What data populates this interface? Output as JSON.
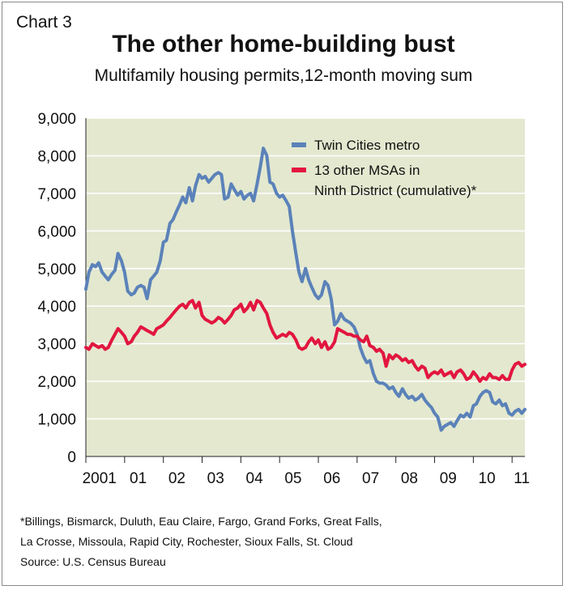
{
  "header": {
    "chart_label": "Chart 3",
    "title": "The other home-building bust",
    "subtitle": "Multifamily housing permits,12-month moving sum"
  },
  "footer": {
    "footnote_line1": "*Billings, Bismarck, Duluth, Eau Claire, Fargo, Grand Forks, Great Falls,",
    "footnote_line2": "La Crosse, Missoula, Rapid City, Rochester, Sioux Falls, St. Cloud",
    "source": "Source: U.S. Census Bureau"
  },
  "colors": {
    "plot_background": "#e3e8cf",
    "twin_cities": "#5b82b9",
    "other_msas": "#e2163f",
    "axis": "#222222"
  },
  "chart_data": {
    "type": "line",
    "title": "The other home-building bust",
    "subtitle": "Multifamily housing permits,12-month moving sum",
    "xlabel": "",
    "ylabel": "",
    "xlim": [
      2001.0,
      2011.85
    ],
    "ylim": [
      0,
      9000
    ],
    "yticks": [
      0,
      1000,
      2000,
      3000,
      4000,
      5000,
      6000,
      7000,
      8000,
      9000
    ],
    "ytick_labels": [
      "0",
      "1,000",
      "2,000",
      "3,000",
      "4,000",
      "5,000",
      "6,000",
      "7,000",
      "8,000",
      "9,000"
    ],
    "xtick_labels": [
      {
        "label": "2001",
        "x": 2001.35
      },
      {
        "label": "01",
        "x": 2002.35
      },
      {
        "label": "02",
        "x": 2003.35
      },
      {
        "label": "03",
        "x": 2004.35
      },
      {
        "label": "04",
        "x": 2005.35
      },
      {
        "label": "05",
        "x": 2006.35
      },
      {
        "label": "06",
        "x": 2007.35
      },
      {
        "label": "07",
        "x": 2008.35
      },
      {
        "label": "08",
        "x": 2009.35
      },
      {
        "label": "09",
        "x": 2010.35
      },
      {
        "label": "10",
        "x": 2011.35
      },
      {
        "label": "11",
        "x": 2012.25
      }
    ],
    "grid": "horizontal",
    "legend_position": "top-right",
    "series": [
      {
        "name": "Twin Cities metro",
        "color": "#5b82b9",
        "points": [
          [
            2001.0,
            4450
          ],
          [
            2001.08,
            4900
          ],
          [
            2001.17,
            5100
          ],
          [
            2001.25,
            5050
          ],
          [
            2001.33,
            5150
          ],
          [
            2001.42,
            4900
          ],
          [
            2001.5,
            4800
          ],
          [
            2001.58,
            4700
          ],
          [
            2001.67,
            4850
          ],
          [
            2001.75,
            4950
          ],
          [
            2001.83,
            5400
          ],
          [
            2001.92,
            5200
          ],
          [
            2002.0,
            4900
          ],
          [
            2002.08,
            4400
          ],
          [
            2002.17,
            4300
          ],
          [
            2002.25,
            4350
          ],
          [
            2002.33,
            4500
          ],
          [
            2002.42,
            4550
          ],
          [
            2002.5,
            4500
          ],
          [
            2002.58,
            4200
          ],
          [
            2002.67,
            4700
          ],
          [
            2002.75,
            4800
          ],
          [
            2002.83,
            4900
          ],
          [
            2002.92,
            5200
          ],
          [
            2003.0,
            5700
          ],
          [
            2003.08,
            5750
          ],
          [
            2003.17,
            6200
          ],
          [
            2003.25,
            6300
          ],
          [
            2003.33,
            6500
          ],
          [
            2003.42,
            6700
          ],
          [
            2003.5,
            6900
          ],
          [
            2003.58,
            6750
          ],
          [
            2003.67,
            7150
          ],
          [
            2003.75,
            6800
          ],
          [
            2003.83,
            7200
          ],
          [
            2003.92,
            7500
          ],
          [
            2004.0,
            7400
          ],
          [
            2004.08,
            7450
          ],
          [
            2004.17,
            7300
          ],
          [
            2004.25,
            7400
          ],
          [
            2004.33,
            7500
          ],
          [
            2004.42,
            7550
          ],
          [
            2004.5,
            7500
          ],
          [
            2004.58,
            6850
          ],
          [
            2004.67,
            6900
          ],
          [
            2004.75,
            7250
          ],
          [
            2004.83,
            7100
          ],
          [
            2004.92,
            6950
          ],
          [
            2005.0,
            7050
          ],
          [
            2005.08,
            6850
          ],
          [
            2005.17,
            6950
          ],
          [
            2005.25,
            7000
          ],
          [
            2005.33,
            6800
          ],
          [
            2005.42,
            7250
          ],
          [
            2005.5,
            7700
          ],
          [
            2005.58,
            8200
          ],
          [
            2005.67,
            8000
          ],
          [
            2005.75,
            7300
          ],
          [
            2005.83,
            7250
          ],
          [
            2005.92,
            7000
          ],
          [
            2006.0,
            6900
          ],
          [
            2006.08,
            6950
          ],
          [
            2006.17,
            6800
          ],
          [
            2006.25,
            6650
          ],
          [
            2006.33,
            6000
          ],
          [
            2006.42,
            5400
          ],
          [
            2006.5,
            4900
          ],
          [
            2006.58,
            4650
          ],
          [
            2006.67,
            5000
          ],
          [
            2006.75,
            4700
          ],
          [
            2006.83,
            4500
          ],
          [
            2006.92,
            4300
          ],
          [
            2007.0,
            4200
          ],
          [
            2007.08,
            4300
          ],
          [
            2007.17,
            4650
          ],
          [
            2007.25,
            4550
          ],
          [
            2007.33,
            4200
          ],
          [
            2007.42,
            3500
          ],
          [
            2007.5,
            3600
          ],
          [
            2007.58,
            3800
          ],
          [
            2007.67,
            3650
          ],
          [
            2007.75,
            3600
          ],
          [
            2007.83,
            3550
          ],
          [
            2007.92,
            3450
          ],
          [
            2008.0,
            3250
          ],
          [
            2008.08,
            2900
          ],
          [
            2008.17,
            2650
          ],
          [
            2008.25,
            2500
          ],
          [
            2008.33,
            2550
          ],
          [
            2008.42,
            2200
          ],
          [
            2008.5,
            2000
          ],
          [
            2008.58,
            1950
          ],
          [
            2008.67,
            1950
          ],
          [
            2008.75,
            1900
          ],
          [
            2008.83,
            1800
          ],
          [
            2008.92,
            1850
          ],
          [
            2009.0,
            1700
          ],
          [
            2009.08,
            1600
          ],
          [
            2009.17,
            1800
          ],
          [
            2009.25,
            1650
          ],
          [
            2009.33,
            1550
          ],
          [
            2009.42,
            1600
          ],
          [
            2009.5,
            1500
          ],
          [
            2009.58,
            1550
          ],
          [
            2009.67,
            1650
          ],
          [
            2009.75,
            1500
          ],
          [
            2009.83,
            1400
          ],
          [
            2009.92,
            1300
          ],
          [
            2010.0,
            1150
          ],
          [
            2010.08,
            1050
          ],
          [
            2010.17,
            700
          ],
          [
            2010.25,
            800
          ],
          [
            2010.33,
            850
          ],
          [
            2010.42,
            900
          ],
          [
            2010.5,
            800
          ],
          [
            2010.58,
            950
          ],
          [
            2010.67,
            1100
          ],
          [
            2010.75,
            1050
          ],
          [
            2010.83,
            1150
          ],
          [
            2010.92,
            1050
          ],
          [
            2011.0,
            1350
          ],
          [
            2011.08,
            1400
          ],
          [
            2011.17,
            1600
          ],
          [
            2011.25,
            1700
          ],
          [
            2011.33,
            1750
          ],
          [
            2011.42,
            1700
          ],
          [
            2011.5,
            1450
          ],
          [
            2011.58,
            1400
          ],
          [
            2011.67,
            1500
          ],
          [
            2011.75,
            1350
          ],
          [
            2011.83,
            1400
          ],
          [
            2011.92,
            1150
          ],
          [
            2012.0,
            1100
          ],
          [
            2012.08,
            1200
          ],
          [
            2012.17,
            1250
          ],
          [
            2012.25,
            1150
          ],
          [
            2012.33,
            1250
          ]
        ]
      },
      {
        "name": "13 other MSAs in Ninth District (cumulative)*",
        "color": "#e2163f",
        "points": [
          [
            2001.0,
            2900
          ],
          [
            2001.08,
            2850
          ],
          [
            2001.17,
            3000
          ],
          [
            2001.25,
            2950
          ],
          [
            2001.33,
            2900
          ],
          [
            2001.42,
            2950
          ],
          [
            2001.5,
            2850
          ],
          [
            2001.58,
            2900
          ],
          [
            2001.67,
            3100
          ],
          [
            2001.75,
            3250
          ],
          [
            2001.83,
            3400
          ],
          [
            2001.92,
            3300
          ],
          [
            2002.0,
            3200
          ],
          [
            2002.08,
            3000
          ],
          [
            2002.17,
            3050
          ],
          [
            2002.25,
            3200
          ],
          [
            2002.33,
            3300
          ],
          [
            2002.42,
            3450
          ],
          [
            2002.5,
            3400
          ],
          [
            2002.58,
            3350
          ],
          [
            2002.67,
            3300
          ],
          [
            2002.75,
            3250
          ],
          [
            2002.83,
            3400
          ],
          [
            2002.92,
            3450
          ],
          [
            2003.0,
            3500
          ],
          [
            2003.08,
            3600
          ],
          [
            2003.17,
            3700
          ],
          [
            2003.25,
            3800
          ],
          [
            2003.33,
            3900
          ],
          [
            2003.42,
            4000
          ],
          [
            2003.5,
            4050
          ],
          [
            2003.58,
            3950
          ],
          [
            2003.67,
            4100
          ],
          [
            2003.75,
            4150
          ],
          [
            2003.83,
            3950
          ],
          [
            2003.92,
            4100
          ],
          [
            2004.0,
            3750
          ],
          [
            2004.08,
            3650
          ],
          [
            2004.17,
            3600
          ],
          [
            2004.25,
            3550
          ],
          [
            2004.33,
            3600
          ],
          [
            2004.42,
            3700
          ],
          [
            2004.5,
            3650
          ],
          [
            2004.58,
            3550
          ],
          [
            2004.67,
            3650
          ],
          [
            2004.75,
            3750
          ],
          [
            2004.83,
            3900
          ],
          [
            2004.92,
            3950
          ],
          [
            2005.0,
            4050
          ],
          [
            2005.08,
            3850
          ],
          [
            2005.17,
            3950
          ],
          [
            2005.25,
            4100
          ],
          [
            2005.33,
            3900
          ],
          [
            2005.42,
            4150
          ],
          [
            2005.5,
            4100
          ],
          [
            2005.58,
            3950
          ],
          [
            2005.67,
            3800
          ],
          [
            2005.75,
            3500
          ],
          [
            2005.83,
            3300
          ],
          [
            2005.92,
            3150
          ],
          [
            2006.0,
            3200
          ],
          [
            2006.08,
            3250
          ],
          [
            2006.17,
            3200
          ],
          [
            2006.25,
            3300
          ],
          [
            2006.33,
            3250
          ],
          [
            2006.42,
            3100
          ],
          [
            2006.5,
            2900
          ],
          [
            2006.58,
            2850
          ],
          [
            2006.67,
            2900
          ],
          [
            2006.75,
            3050
          ],
          [
            2006.83,
            3150
          ],
          [
            2006.92,
            3000
          ],
          [
            2007.0,
            3100
          ],
          [
            2007.08,
            2900
          ],
          [
            2007.17,
            3050
          ],
          [
            2007.25,
            2850
          ],
          [
            2007.33,
            2900
          ],
          [
            2007.42,
            3050
          ],
          [
            2007.5,
            3400
          ],
          [
            2007.58,
            3350
          ],
          [
            2007.67,
            3300
          ],
          [
            2007.75,
            3250
          ],
          [
            2007.83,
            3250
          ],
          [
            2007.92,
            3200
          ],
          [
            2008.0,
            3200
          ],
          [
            2008.08,
            3100
          ],
          [
            2008.17,
            3050
          ],
          [
            2008.25,
            3200
          ],
          [
            2008.33,
            2950
          ],
          [
            2008.42,
            2900
          ],
          [
            2008.5,
            2800
          ],
          [
            2008.58,
            2850
          ],
          [
            2008.67,
            2750
          ],
          [
            2008.75,
            2400
          ],
          [
            2008.83,
            2700
          ],
          [
            2008.92,
            2600
          ],
          [
            2009.0,
            2700
          ],
          [
            2009.08,
            2650
          ],
          [
            2009.17,
            2550
          ],
          [
            2009.25,
            2600
          ],
          [
            2009.33,
            2500
          ],
          [
            2009.42,
            2550
          ],
          [
            2009.5,
            2400
          ],
          [
            2009.58,
            2300
          ],
          [
            2009.67,
            2400
          ],
          [
            2009.75,
            2350
          ],
          [
            2009.83,
            2100
          ],
          [
            2009.92,
            2200
          ],
          [
            2010.0,
            2250
          ],
          [
            2010.08,
            2200
          ],
          [
            2010.17,
            2300
          ],
          [
            2010.25,
            2150
          ],
          [
            2010.33,
            2200
          ],
          [
            2010.42,
            2250
          ],
          [
            2010.5,
            2100
          ],
          [
            2010.58,
            2250
          ],
          [
            2010.67,
            2300
          ],
          [
            2010.75,
            2200
          ],
          [
            2010.83,
            2050
          ],
          [
            2010.92,
            2100
          ],
          [
            2011.0,
            2250
          ],
          [
            2011.08,
            2150
          ],
          [
            2011.17,
            2000
          ],
          [
            2011.25,
            2100
          ],
          [
            2011.33,
            2050
          ],
          [
            2011.42,
            2200
          ],
          [
            2011.5,
            2100
          ],
          [
            2011.58,
            2100
          ],
          [
            2011.67,
            2050
          ],
          [
            2011.75,
            2150
          ],
          [
            2011.83,
            2050
          ],
          [
            2011.92,
            2050
          ],
          [
            2012.0,
            2300
          ],
          [
            2012.08,
            2450
          ],
          [
            2012.17,
            2500
          ],
          [
            2012.25,
            2400
          ],
          [
            2012.33,
            2450
          ]
        ]
      }
    ],
    "legend": [
      {
        "name": "Twin Cities metro",
        "label_lines": [
          "Twin Cities metro"
        ],
        "color": "#5b82b9"
      },
      {
        "name": "13 other MSAs in Ninth District (cumulative)*",
        "label_lines": [
          "13 other MSAs in",
          "Ninth District (cumulative)*"
        ],
        "color": "#e2163f"
      }
    ]
  }
}
